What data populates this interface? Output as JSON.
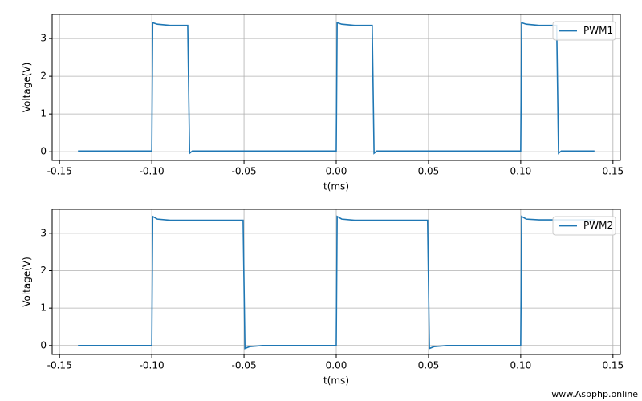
{
  "chart_data": [
    {
      "type": "line",
      "xlabel": "t(ms)",
      "ylabel": "Voltage(V)",
      "x": [
        -0.14,
        -0.1,
        -0.0995,
        -0.097,
        -0.09,
        -0.0805,
        -0.0795,
        -0.078,
        0.0,
        0.0005,
        0.003,
        0.01,
        0.0195,
        0.0205,
        0.022,
        0.1,
        0.1005,
        0.103,
        0.11,
        0.1195,
        0.1205,
        0.122,
        0.14
      ],
      "series": [
        {
          "name": "PWM1",
          "color": "#1f77b4",
          "values": [
            0.02,
            0.02,
            3.42,
            3.38,
            3.35,
            3.35,
            -0.04,
            0.02,
            0.02,
            3.42,
            3.38,
            3.35,
            3.35,
            -0.04,
            0.02,
            0.02,
            3.42,
            3.38,
            3.35,
            3.35,
            -0.04,
            0.02,
            0.02
          ]
        }
      ],
      "xlim": [
        -0.154,
        0.154
      ],
      "ylim": [
        -0.23,
        3.64
      ],
      "xticks": [
        -0.15,
        {
          "value": -0.1,
          "label": "-0.10"
        },
        -0.05,
        {
          "value": 0,
          "label": "0.00"
        },
        0.05,
        {
          "value": 0.1,
          "label": "0.10"
        },
        0.15
      ],
      "yticks": [
        0,
        1,
        2,
        3
      ],
      "grid": true,
      "legend": "upper right"
    },
    {
      "type": "line",
      "xlabel": "t(ms)",
      "ylabel": "Voltage(V)",
      "x": [
        -0.14,
        -0.1,
        -0.0995,
        -0.097,
        -0.09,
        -0.0505,
        -0.0495,
        -0.047,
        -0.04,
        0.0,
        0.0005,
        0.003,
        0.01,
        0.0495,
        0.0505,
        0.053,
        0.06,
        0.1,
        0.1005,
        0.103,
        0.11,
        0.14
      ],
      "series": [
        {
          "name": "PWM2",
          "color": "#1f77b4",
          "values": [
            0.0,
            0.0,
            3.45,
            3.38,
            3.35,
            3.35,
            -0.08,
            -0.03,
            0.0,
            0.0,
            3.45,
            3.38,
            3.35,
            3.35,
            -0.08,
            -0.03,
            0.0,
            0.0,
            3.45,
            3.38,
            3.36,
            3.36
          ]
        }
      ],
      "xlim": [
        -0.154,
        0.154
      ],
      "ylim": [
        -0.24,
        3.64
      ],
      "xticks": [
        -0.15,
        {
          "value": -0.1,
          "label": "-0.10"
        },
        -0.05,
        {
          "value": 0,
          "label": "0.00"
        },
        0.05,
        {
          "value": 0.1,
          "label": "0.10"
        },
        0.15
      ],
      "yticks": [
        0,
        1,
        2,
        3
      ],
      "grid": true,
      "legend": "upper right"
    }
  ],
  "watermark": "www.Aspphp.online"
}
